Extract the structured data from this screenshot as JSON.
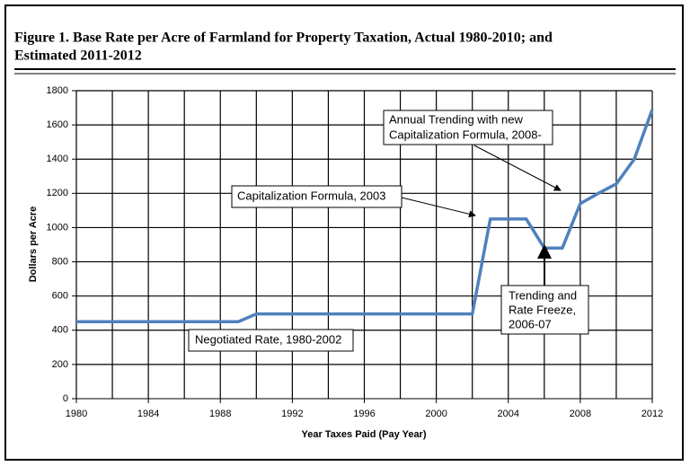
{
  "chart_data": {
    "type": "line",
    "title": [
      "Figure 1. Base Rate per Acre of Farmland for Property Taxation, Actual 1980-2010; and",
      "Estimated 2011-2012"
    ],
    "x_label": "Year Taxes Paid (Pay Year)",
    "y_label": "Dollars per Acre",
    "x": [
      1980,
      1981,
      1982,
      1983,
      1984,
      1985,
      1986,
      1987,
      1988,
      1989,
      1990,
      1991,
      1992,
      1993,
      1994,
      1995,
      1996,
      1997,
      1998,
      1999,
      2000,
      2001,
      2002,
      2003,
      2004,
      2005,
      2006,
      2007,
      2008,
      2009,
      2010,
      2011,
      2012
    ],
    "values": [
      450,
      450,
      450,
      450,
      450,
      450,
      450,
      450,
      450,
      450,
      495,
      495,
      495,
      495,
      495,
      495,
      495,
      495,
      495,
      495,
      495,
      495,
      495,
      1050,
      1050,
      1050,
      880,
      880,
      1140,
      1200,
      1255,
      1400,
      1690
    ],
    "color": "#4f81bd",
    "xlim": [
      1980,
      2012
    ],
    "xticks": [
      1980,
      1984,
      1988,
      1992,
      1996,
      2000,
      2004,
      2008,
      2012
    ],
    "xminorticks": [
      1980,
      1982,
      1984,
      1986,
      1988,
      1990,
      1992,
      1994,
      1996,
      1998,
      2000,
      2002,
      2004,
      2006,
      2008,
      2010,
      2012
    ],
    "ylim": [
      0,
      1800
    ],
    "yticks": [
      0,
      200,
      400,
      600,
      800,
      1000,
      1200,
      1400,
      1600,
      1800
    ],
    "grid": true,
    "annotations": [
      [
        "Annual Trending with new",
        "Capitalization Formula, 2008-"
      ],
      [
        "Capitalization Formula, 2003"
      ],
      [
        "Trending and",
        "Rate Freeze,",
        "2006-07"
      ],
      [
        "Negotiated Rate, 1980-2002"
      ]
    ]
  }
}
